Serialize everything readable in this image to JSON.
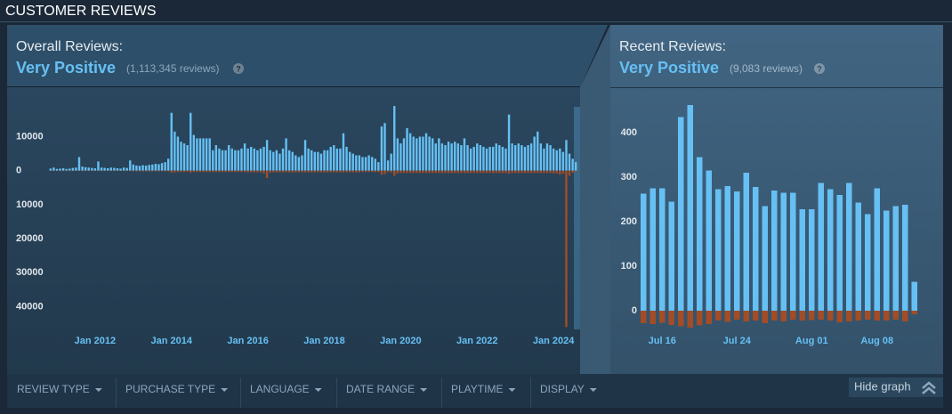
{
  "header": {
    "title": "CUSTOMER REVIEWS"
  },
  "overall": {
    "label": "Overall Reviews:",
    "rating": "Very Positive",
    "count": "(1,113,345 reviews)",
    "help": "?"
  },
  "recent": {
    "label": "Recent Reviews:",
    "rating": "Very Positive",
    "count": "(9,083 reviews)",
    "help": "?"
  },
  "filters": [
    "REVIEW TYPE",
    "PURCHASE TYPE",
    "LANGUAGE",
    "DATE RANGE",
    "PLAYTIME",
    "DISPLAY"
  ],
  "hide_graph": "Hide graph",
  "chart_data": [
    {
      "type": "bar",
      "categories": [
        null,
        null,
        null,
        null,
        null,
        null,
        null,
        null,
        null,
        null,
        null,
        null,
        null,
        null,
        "Jan 2012",
        null,
        null,
        null,
        null,
        null,
        null,
        null,
        null,
        null,
        null,
        null,
        null,
        null,
        null,
        null,
        null,
        null,
        null,
        null,
        null,
        null,
        null,
        null,
        "Jan 2014",
        null,
        null,
        null,
        null,
        null,
        null,
        null,
        null,
        null,
        null,
        null,
        null,
        null,
        null,
        null,
        null,
        null,
        null,
        null,
        null,
        null,
        null,
        null,
        "Jan 2016",
        null,
        null,
        null,
        null,
        null,
        null,
        null,
        null,
        null,
        null,
        null,
        null,
        null,
        null,
        null,
        null,
        null,
        null,
        null,
        null,
        null,
        null,
        null,
        "Jan 2018",
        null,
        null,
        null,
        null,
        null,
        null,
        null,
        null,
        null,
        null,
        null,
        null,
        null,
        null,
        null,
        null,
        null,
        null,
        null,
        null,
        null,
        null,
        null,
        "Jan 2020",
        null,
        null,
        null,
        null,
        null,
        null,
        null,
        null,
        null,
        null,
        null,
        null,
        null,
        null,
        null,
        null,
        null,
        null,
        null,
        null,
        null,
        null,
        null,
        "Jan 2022",
        null,
        null,
        null,
        null,
        null,
        null,
        null,
        null,
        null,
        null,
        null,
        null,
        null,
        null,
        null,
        null,
        null,
        null,
        null,
        null,
        null,
        null,
        null,
        "Jan 2024",
        null,
        null,
        null,
        null,
        null,
        null,
        null
      ],
      "series": [
        {
          "color": "#66c0f4",
          "values": [
            600,
            900,
            500,
            600,
            700,
            500,
            600,
            800,
            900,
            4000,
            1200,
            1000,
            900,
            800,
            700,
            2700,
            900,
            800,
            700,
            900,
            800,
            700,
            600,
            900,
            800,
            3000,
            1800,
            1500,
            1400,
            1600,
            1500,
            1700,
            1800,
            2000,
            1900,
            2200,
            2500,
            3500,
            17000,
            11500,
            10000,
            8500,
            8000,
            7500,
            17000,
            10500,
            9500,
            9500,
            9500,
            9500,
            9500,
            6000,
            7500,
            6500,
            6000,
            6000,
            7500,
            6500,
            6000,
            6000,
            6500,
            8000,
            6500,
            7000,
            6500,
            6000,
            6500,
            7000,
            9000,
            6000,
            5500,
            6000,
            5000,
            6500,
            9500,
            6000,
            5500,
            4500,
            4000,
            4500,
            9000,
            6500,
            6000,
            5500,
            5500,
            5000,
            6000,
            6000,
            7000,
            7500,
            6500,
            6500,
            11000,
            7000,
            5500,
            5000,
            4500,
            4500,
            4000,
            4000,
            4500,
            4000,
            3500,
            2500,
            13000,
            14000,
            3000,
            5000,
            19000,
            9500,
            8000,
            9500,
            12500,
            11000,
            10000,
            9500,
            10000,
            10000,
            11000,
            10000,
            9500,
            8000,
            9500,
            8000,
            7500,
            8500,
            8000,
            8500,
            8000,
            7500,
            9500,
            7500,
            6500,
            7000,
            8000,
            7500,
            7000,
            6500,
            7000,
            7000,
            8000,
            7500,
            7000,
            6500,
            16500,
            8000,
            7500,
            8000,
            7500,
            7000,
            7500,
            8000,
            10000,
            11500,
            8000,
            6500,
            8000,
            7500,
            6500,
            6000,
            6500,
            5500,
            9000,
            5000,
            3500,
            2500
          ]
        },
        {
          "color": "#a34c25",
          "values": [
            -100,
            -100,
            -100,
            -100,
            -100,
            -100,
            -100,
            -100,
            -100,
            -100,
            -100,
            -100,
            -100,
            -100,
            -100,
            -100,
            -100,
            -100,
            -100,
            -100,
            -100,
            -100,
            -100,
            -100,
            -100,
            -100,
            -200,
            -200,
            -200,
            -200,
            -200,
            -200,
            -200,
            -200,
            -200,
            -200,
            -200,
            -200,
            -600,
            -500,
            -400,
            -400,
            -400,
            -300,
            -600,
            -400,
            -400,
            -400,
            -400,
            -400,
            -400,
            -400,
            -400,
            -400,
            -400,
            -400,
            -400,
            -400,
            -400,
            -400,
            -400,
            -400,
            -500,
            -500,
            -500,
            -500,
            -500,
            -800,
            -2200,
            -600,
            -500,
            -500,
            -500,
            -500,
            -500,
            -500,
            -500,
            -500,
            -500,
            -500,
            -500,
            -500,
            -500,
            -500,
            -500,
            -500,
            -500,
            -500,
            -500,
            -500,
            -500,
            -500,
            -500,
            -500,
            -500,
            -500,
            -500,
            -500,
            -400,
            -400,
            -400,
            -400,
            -400,
            -400,
            -1200,
            -1000,
            -400,
            -500,
            -1500,
            -800,
            -700,
            -700,
            -700,
            -700,
            -700,
            -700,
            -700,
            -700,
            -700,
            -700,
            -700,
            -700,
            -700,
            -700,
            -700,
            -700,
            -700,
            -700,
            -700,
            -700,
            -700,
            -700,
            -700,
            -700,
            -700,
            -700,
            -700,
            -700,
            -700,
            -700,
            -700,
            -700,
            -700,
            -700,
            -900,
            -700,
            -700,
            -700,
            -700,
            -700,
            -700,
            -700,
            -700,
            -700,
            -700,
            -700,
            -700,
            -700,
            -800,
            -800,
            -1200,
            -900,
            -46000,
            -1500,
            -600,
            -400
          ]
        }
      ],
      "ylim": [
        -48000,
        24000
      ],
      "yticks": [
        10000,
        0,
        {
          "value": -10000,
          "label": "10000"
        },
        {
          "value": -20000,
          "label": "20000"
        },
        {
          "value": -30000,
          "label": "30000"
        },
        {
          "value": -40000,
          "label": "40000"
        }
      ]
    },
    {
      "type": "bar",
      "categories": [
        null,
        null,
        "Jul 16",
        null,
        null,
        null,
        null,
        null,
        null,
        null,
        "Jul 24",
        null,
        null,
        null,
        null,
        null,
        null,
        null,
        "Aug 01",
        null,
        null,
        null,
        null,
        null,
        null,
        "Aug 08",
        null,
        null,
        null,
        null
      ],
      "series": [
        {
          "color": "#66c0f4",
          "values": [
            263,
            275,
            275,
            245,
            435,
            462,
            345,
            315,
            273,
            280,
            268,
            310,
            278,
            235,
            270,
            265,
            265,
            228,
            228,
            287,
            273,
            260,
            287,
            243,
            217,
            275,
            225,
            235,
            238,
            65
          ]
        },
        {
          "color": "#a34c25",
          "values": [
            -28,
            -30,
            -27,
            -32,
            -35,
            -38,
            -33,
            -30,
            -22,
            -25,
            -20,
            -24,
            -22,
            -28,
            -22,
            -24,
            -20,
            -22,
            -21,
            -20,
            -22,
            -26,
            -24,
            -22,
            -20,
            -22,
            -22,
            -20,
            -24,
            -8
          ]
        }
      ],
      "ylim": [
        -42,
        498
      ],
      "yticks": [
        0,
        100,
        200,
        300,
        400
      ]
    }
  ]
}
